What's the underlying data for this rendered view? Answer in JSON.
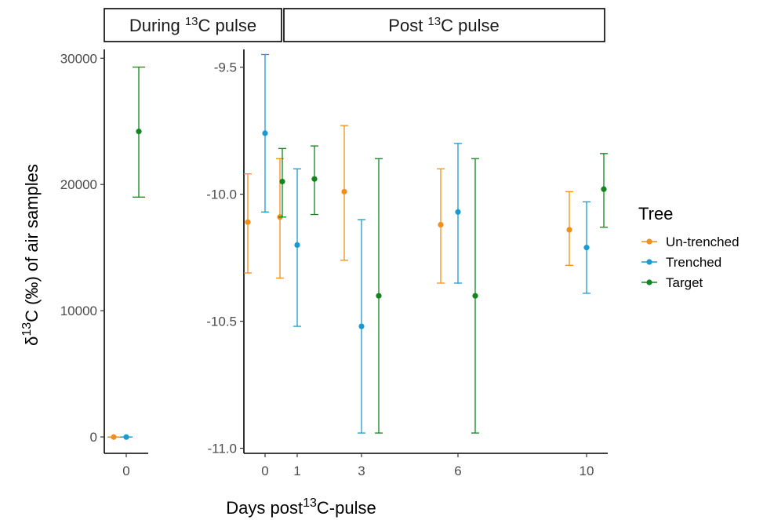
{
  "chart_data": {
    "type": "errorbar",
    "xlabel": {
      "pre": "Days post",
      "sup": "13",
      "post": "C-pulse"
    },
    "ylabel": {
      "delta": "δ",
      "sup": "13",
      "post": "C (‰)  of air samples"
    },
    "legend": {
      "title": "Tree",
      "position": "right"
    },
    "colors": {
      "Un-trenched": "#F28E1C",
      "Trenched": "#1A9BD0",
      "Target": "#12851F"
    },
    "grid": false,
    "panels": [
      {
        "strip": {
          "pre": "During ",
          "sup": "13",
          "post": "C pulse"
        },
        "x_ticks": [
          0
        ],
        "y_ticks": [
          0,
          10000,
          20000,
          30000
        ],
        "y_tick_labels": [
          "0",
          "10000",
          "20000",
          "30000"
        ],
        "ylim": [
          -1300,
          30700
        ],
        "series": [
          {
            "name": "Un-trenched",
            "points": [
              {
                "x": 0,
                "y": -10.1,
                "lo": -10.3,
                "hi": -9.9
              }
            ]
          },
          {
            "name": "Trenched",
            "points": [
              {
                "x": 0,
                "y": -9.7,
                "lo": -9.9,
                "hi": -9.5
              }
            ]
          },
          {
            "name": "Target",
            "points": [
              {
                "x": 0,
                "y": 24200,
                "lo": 19000,
                "hi": 29300
              }
            ]
          }
        ]
      },
      {
        "strip": {
          "pre": "Post ",
          "sup": "13",
          "post": "C pulse"
        },
        "x_ticks": [
          0,
          1,
          3,
          6,
          10
        ],
        "y_ticks": [
          -11.0,
          -10.5,
          -10.0,
          -9.5
        ],
        "y_tick_labels": [
          "-11.0",
          "-10.5",
          "-10.0",
          "-9.5"
        ],
        "ylim": [
          -11.02,
          -9.43
        ],
        "series": [
          {
            "name": "Un-trenched",
            "points": [
              {
                "x": 0,
                "y": -10.11,
                "lo": -10.31,
                "hi": -9.92
              },
              {
                "x": 1,
                "y": -10.09,
                "lo": -10.33,
                "hi": -9.86
              },
              {
                "x": 3,
                "y": -9.99,
                "lo": -10.26,
                "hi": -9.73
              },
              {
                "x": 6,
                "y": -10.12,
                "lo": -10.35,
                "hi": -9.9
              },
              {
                "x": 10,
                "y": -10.14,
                "lo": -10.28,
                "hi": -9.99
              }
            ]
          },
          {
            "name": "Trenched",
            "points": [
              {
                "x": 0,
                "y": -9.76,
                "lo": -10.07,
                "hi": -9.45
              },
              {
                "x": 1,
                "y": -10.2,
                "lo": -10.52,
                "hi": -9.9
              },
              {
                "x": 3,
                "y": -10.52,
                "lo": -10.94,
                "hi": -10.1
              },
              {
                "x": 6,
                "y": -10.07,
                "lo": -10.35,
                "hi": -9.8
              },
              {
                "x": 10,
                "y": -10.21,
                "lo": -10.39,
                "hi": -10.03
              }
            ]
          },
          {
            "name": "Target",
            "points": [
              {
                "x": 0,
                "y": -9.95,
                "lo": -10.09,
                "hi": -9.82
              },
              {
                "x": 1,
                "y": -9.94,
                "lo": -10.08,
                "hi": -9.81
              },
              {
                "x": 3,
                "y": -10.4,
                "lo": -10.94,
                "hi": -9.86
              },
              {
                "x": 6,
                "y": -10.4,
                "lo": -10.94,
                "hi": -9.86
              },
              {
                "x": 10,
                "y": -9.98,
                "lo": -10.13,
                "hi": -9.84
              }
            ]
          }
        ]
      }
    ]
  }
}
